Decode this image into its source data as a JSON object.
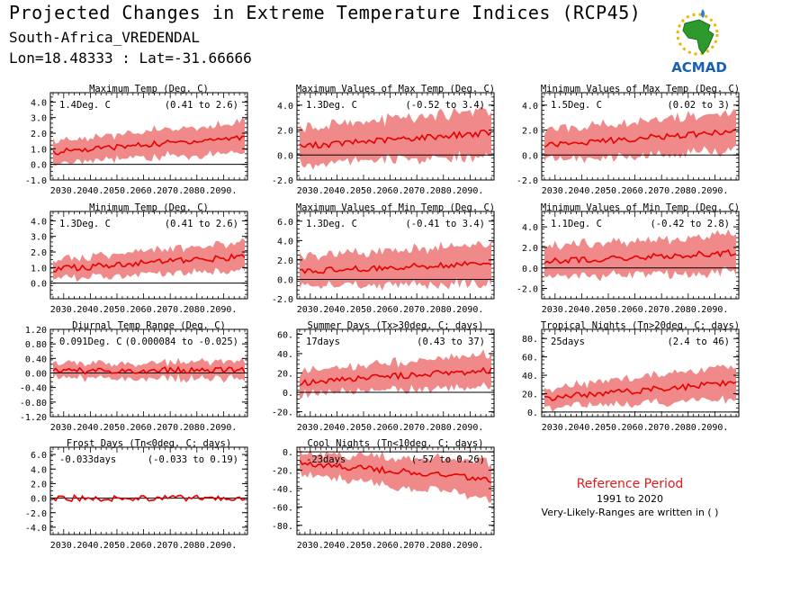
{
  "header": {
    "title": "Projected Changes in Extreme Temperature Indices (RCP45)",
    "location": "South-Africa_VREDENDAL",
    "coordinates": "Lon=18.48333 : Lat=-31.66666"
  },
  "logo": {
    "text": "ACMAD",
    "icon": "africa-map-sun-logo"
  },
  "reference": {
    "title": "Reference Period",
    "years": "1991 to 2020",
    "note": "Very-Likely-Ranges are written in ( )"
  },
  "colors": {
    "band": "#f08a8a",
    "line": "#e60000",
    "zero": "#000000"
  },
  "x_ticks": [
    "2030.",
    "2040.",
    "2050.",
    "2060.",
    "2070.",
    "2080.",
    "2090."
  ],
  "chart_data": [
    {
      "type": "area",
      "title": "Maximum Temp (Deg. C)",
      "value": "1.4Deg. C",
      "range": "(0.41 to 2.6)",
      "x": [
        2025,
        2099
      ],
      "mean": [
        0.8,
        1.75
      ],
      "spread": [
        0.7,
        1.0
      ],
      "ylim": [
        -1.0,
        4.6
      ],
      "yticks": [
        "4.0",
        "3.0",
        "2.0",
        "1.0",
        "0.0",
        "-1.0"
      ],
      "ytick_values": [
        4,
        3,
        2,
        1,
        0,
        -1
      ]
    },
    {
      "type": "area",
      "title": "Maximum Values of Max Temp (Deg. C)",
      "value": "1.3Deg. C",
      "range": "(-0.52 to 3.4)",
      "x": [
        2025,
        2099
      ],
      "mean": [
        0.7,
        1.8
      ],
      "spread": [
        1.5,
        1.9
      ],
      "ylim": [
        -2.0,
        5.0
      ],
      "yticks": [
        "4.0",
        "2.0",
        "0.0",
        "-2.0"
      ],
      "ytick_values": [
        4,
        2,
        0,
        -2
      ]
    },
    {
      "type": "area",
      "title": "Minimum Values of Max Temp (Deg. C)",
      "value": "1.5Deg. C",
      "range": "(0.02 to 3)",
      "x": [
        2025,
        2099
      ],
      "mean": [
        0.8,
        1.9
      ],
      "spread": [
        1.2,
        1.6
      ],
      "ylim": [
        -2.0,
        5.0
      ],
      "yticks": [
        "4.0",
        "2.0",
        "0.0",
        "-2.0"
      ],
      "ytick_values": [
        4,
        2,
        0,
        -2
      ]
    },
    {
      "type": "area",
      "title": "Minimum Temp (Deg. C)",
      "value": "1.3Deg. C",
      "range": "(0.41 to 2.6)",
      "x": [
        2025,
        2099
      ],
      "mean": [
        0.9,
        1.7
      ],
      "spread": [
        0.6,
        0.95
      ],
      "ylim": [
        -1.0,
        4.6
      ],
      "yticks": [
        "4.0",
        "3.0",
        "2.0",
        "1.0",
        "0.0"
      ],
      "ytick_values": [
        4,
        3,
        2,
        1,
        0
      ]
    },
    {
      "type": "area",
      "title": "Maximum Values of Min Temp (Deg. C)",
      "value": "1.3Deg. C",
      "range": "(-0.41 to 3.4)",
      "x": [
        2025,
        2099
      ],
      "mean": [
        0.8,
        1.7
      ],
      "spread": [
        1.6,
        2.1
      ],
      "ylim": [
        -2.0,
        7.0
      ],
      "yticks": [
        "6.0",
        "4.0",
        "2.0",
        "0.0",
        "-2.0"
      ],
      "ytick_values": [
        6,
        4,
        2,
        0,
        -2
      ]
    },
    {
      "type": "area",
      "title": "Minimum Values of Min Temp (Deg. C)",
      "value": "1.1Deg. C",
      "range": "(-0.42 to 2.8)",
      "x": [
        2025,
        2099
      ],
      "mean": [
        0.6,
        1.5
      ],
      "spread": [
        1.5,
        1.9
      ],
      "ylim": [
        -3.0,
        5.5
      ],
      "yticks": [
        "4.0",
        "2.0",
        "0.0",
        "-2.0"
      ],
      "ytick_values": [
        4,
        2,
        0,
        -2
      ]
    },
    {
      "type": "area",
      "title": "Diurnal Temp Range (Deg. C)",
      "value": "0.091Deg. C",
      "range": "(0.000084 to -0.025)",
      "x": [
        2025,
        2099
      ],
      "mean": [
        0.05,
        0.09
      ],
      "spread": [
        0.2,
        0.25
      ],
      "ylim": [
        -1.2,
        1.2
      ],
      "yticks": [
        "1.20",
        "0.80",
        "0.40",
        "0.00",
        "-0.40",
        "-0.80",
        "-1.20"
      ],
      "ytick_values": [
        1.2,
        0.8,
        0.4,
        0,
        -0.4,
        -0.8,
        -1.2
      ]
    },
    {
      "type": "area",
      "title": "Summer Days (Tx>30deg. C; days)",
      "value": "17days",
      "range": "(0.43 to 37)",
      "x": [
        2025,
        2099
      ],
      "mean": [
        10,
        23
      ],
      "spread": [
        12,
        17
      ],
      "ylim": [
        -25,
        65
      ],
      "yticks": [
        "60.",
        "40.",
        "20.",
        "0.",
        "-20."
      ],
      "ytick_values": [
        60,
        40,
        20,
        0,
        -20
      ]
    },
    {
      "type": "area",
      "title": "Tropical Nights (Tn>20deg. C; days)",
      "value": "25days",
      "range": "(2.4 to 46)",
      "x": [
        2025,
        2099
      ],
      "mean": [
        15,
        32
      ],
      "spread": [
        10,
        19
      ],
      "ylim": [
        -5,
        90
      ],
      "yticks": [
        "80.",
        "60.",
        "40.",
        "20.",
        "0."
      ],
      "ytick_values": [
        80,
        60,
        40,
        20,
        0
      ]
    },
    {
      "type": "area",
      "title": "Frost Days (Tn<0deg. C; days)",
      "value": "-0.033days",
      "range": "(-0.033 to 0.19)",
      "x": [
        2025,
        2099
      ],
      "mean": [
        0.0,
        0.0
      ],
      "spread": [
        0.1,
        0.1
      ],
      "ylim": [
        -5.0,
        7.0
      ],
      "yticks": [
        "6.0",
        "4.0",
        "2.0",
        "0.0",
        "-2.0",
        "-4.0"
      ],
      "ytick_values": [
        6,
        4,
        2,
        0,
        -2,
        -4
      ]
    },
    {
      "type": "area",
      "title": "Cool Nights (Tn<10deg. C; days)",
      "value": "-23days",
      "range": "(-57 to 0.26)",
      "x": [
        2025,
        2099
      ],
      "mean": [
        -12,
        -30
      ],
      "spread": [
        12,
        20
      ],
      "ylim": [
        -90,
        5
      ],
      "yticks": [
        "0.",
        "-20.",
        "-40.",
        "-60.",
        "-80."
      ],
      "ytick_values": [
        0,
        -20,
        -40,
        -60,
        -80
      ]
    }
  ]
}
